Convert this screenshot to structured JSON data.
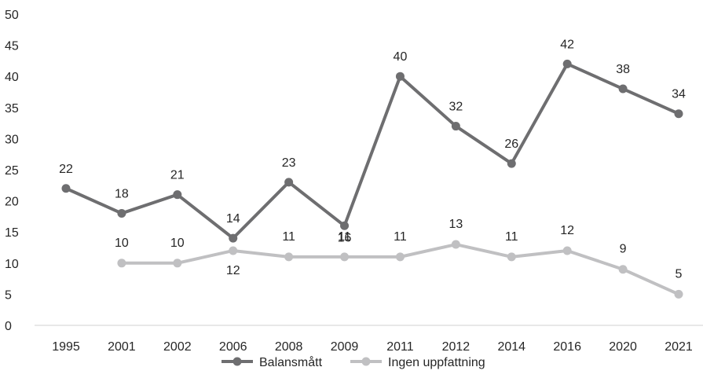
{
  "chart_data": {
    "type": "line",
    "title": "",
    "xlabel": "",
    "ylabel": "",
    "categories": [
      "1995",
      "2001",
      "2002",
      "2006",
      "2008",
      "2009",
      "2011",
      "2012",
      "2014",
      "2016",
      "2020",
      "2021"
    ],
    "ylim": [
      0,
      50
    ],
    "yticks": [
      0,
      5,
      10,
      15,
      20,
      25,
      30,
      35,
      40,
      45,
      50
    ],
    "grid": false,
    "legend_position": "bottom",
    "series": [
      {
        "name": "Balansmått",
        "color": "#6e6e70",
        "values": [
          22,
          18,
          21,
          14,
          23,
          16,
          40,
          32,
          26,
          42,
          38,
          34
        ],
        "labels": [
          "22",
          "18",
          "21",
          "14",
          "23",
          "16",
          "40",
          "32",
          "26",
          "42",
          "38",
          "34"
        ]
      },
      {
        "name": "Ingen uppfattning",
        "color": "#c0c0c2",
        "values": [
          null,
          10,
          10,
          12,
          11,
          11,
          11,
          13,
          11,
          12,
          9,
          5
        ],
        "labels": [
          null,
          "10",
          "10",
          "12",
          "11",
          "11",
          "11",
          "13",
          "11",
          "12",
          "9",
          "5"
        ]
      }
    ]
  }
}
